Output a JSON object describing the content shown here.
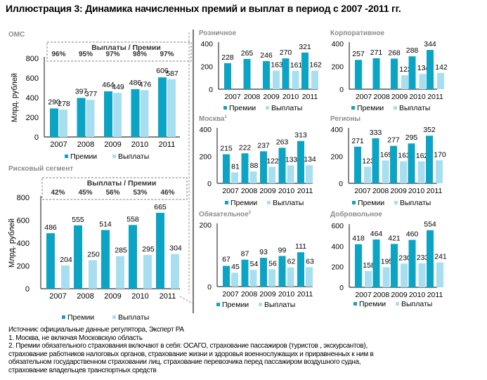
{
  "title": "Иллюстрация 3: Динамика начисленных премий и выплат в период с 2007 -2011 гг.",
  "colors": {
    "premii": "#0ba4c4",
    "vyplaty": "#a8dff0",
    "panel_title": "#8c8c8c",
    "dash": "#9a9a9a"
  },
  "legend": {
    "premii": "Премии",
    "vyplaty": "Выплаты"
  },
  "ratio_header": "Выплаты / Премии",
  "ylabel": "Млрд. рублей",
  "chart_data": [
    {
      "id": "oms",
      "type": "bar",
      "title": "ОМС",
      "categories": [
        "2007",
        "2008",
        "2009",
        "2010",
        "2011"
      ],
      "series": [
        {
          "name": "Премии",
          "values": [
            290,
            397,
            464,
            486,
            606
          ]
        },
        {
          "name": "Выплаты",
          "values": [
            278,
            377,
            449,
            476,
            587
          ]
        }
      ],
      "ratios": [
        "96%",
        "95%",
        "97%",
        "98%",
        "97%"
      ],
      "ylabel": "Млрд. рублей",
      "ylim": [
        0,
        800
      ],
      "yticks": [
        0,
        200,
        400,
        600,
        800
      ],
      "legend": "bottom",
      "grid": false
    },
    {
      "id": "risk",
      "type": "bar",
      "title": "Рисковый сегмент",
      "categories": [
        "2007",
        "2008",
        "2009",
        "2010",
        "2011"
      ],
      "series": [
        {
          "name": "Премии",
          "values": [
            486,
            555,
            514,
            558,
            665
          ]
        },
        {
          "name": "Выплаты",
          "values": [
            204,
            250,
            285,
            295,
            304
          ]
        }
      ],
      "ratios": [
        "42%",
        "45%",
        "56%",
        "53%",
        "46%"
      ],
      "ylabel": "Млрд. рублей",
      "ylim": [
        0,
        800
      ],
      "yticks": [
        0,
        200,
        400,
        600,
        800
      ],
      "legend": "bottom",
      "grid": false
    },
    {
      "id": "retail",
      "type": "bar",
      "title": "Розничное",
      "categories": [
        "2007",
        "2008",
        "2009",
        "2010",
        "2011"
      ],
      "series": [
        {
          "name": "Премии",
          "values": [
            228,
            265,
            246,
            270,
            321
          ]
        },
        {
          "name": "Выплаты",
          "values": [
            null,
            null,
            163,
            161,
            162
          ]
        }
      ],
      "ylim": [
        0,
        400
      ],
      "yticks": [
        0,
        200,
        400
      ],
      "legend": "bottom",
      "grid": false
    },
    {
      "id": "corporate",
      "type": "bar",
      "title": "Корпоративное",
      "categories": [
        "2007",
        "2008",
        "2009",
        "2010",
        "2011"
      ],
      "series": [
        {
          "name": "Премии",
          "values": [
            257,
            271,
            268,
            288,
            344
          ]
        },
        {
          "name": "Выплаты",
          "values": [
            null,
            null,
            122,
            134,
            142
          ]
        }
      ],
      "ylim": [
        0,
        400
      ],
      "yticks": [
        0,
        200,
        400
      ],
      "legend": "bottom",
      "grid": false
    },
    {
      "id": "moscow",
      "type": "bar",
      "title": "Москва",
      "title_sup": "1",
      "categories": [
        "2007",
        "2008",
        "2009",
        "2010",
        "2011"
      ],
      "series": [
        {
          "name": "Премии",
          "values": [
            215,
            222,
            237,
            263,
            313
          ]
        },
        {
          "name": "Выплаты",
          "values": [
            81,
            88,
            122,
            133,
            134
          ]
        }
      ],
      "ylim": [
        0,
        400
      ],
      "yticks": [
        0,
        200,
        400
      ],
      "legend": "bottom",
      "grid": false
    },
    {
      "id": "regions",
      "type": "bar",
      "title": "Регионы",
      "categories": [
        "2007",
        "2008",
        "2009",
        "2010",
        "2011"
      ],
      "series": [
        {
          "name": "Премии",
          "values": [
            271,
            333,
            277,
            295,
            352
          ]
        },
        {
          "name": "Выплаты",
          "values": [
            123,
            169,
            163,
            162,
            170
          ]
        }
      ],
      "ylim": [
        0,
        400
      ],
      "yticks": [
        0,
        200,
        400
      ],
      "legend": "bottom",
      "grid": false
    },
    {
      "id": "mandatory",
      "type": "bar",
      "title": "Обязательное",
      "title_sup": "2",
      "categories": [
        "2007",
        "2008",
        "2009",
        "2010",
        "2011"
      ],
      "series": [
        {
          "name": "Премии",
          "values": [
            67,
            87,
            93,
            99,
            111
          ]
        },
        {
          "name": "Выплаты",
          "values": [
            45,
            54,
            56,
            62,
            63
          ]
        }
      ],
      "ylim": [
        0,
        200
      ],
      "yticks": [
        0,
        200
      ],
      "legend": "bottom",
      "grid": false
    },
    {
      "id": "voluntary",
      "type": "bar",
      "title": "Добровольное",
      "categories": [
        "2007",
        "2008",
        "2009",
        "2010",
        "2011"
      ],
      "series": [
        {
          "name": "Премии",
          "values": [
            418,
            464,
            421,
            460,
            554
          ]
        },
        {
          "name": "Выплаты",
          "values": [
            158,
            195,
            230,
            233,
            241
          ]
        }
      ],
      "ylim": [
        0,
        600
      ],
      "yticks": [
        0,
        200,
        400,
        600
      ],
      "legend": "bottom",
      "grid": false
    }
  ],
  "footnotes": [
    "Источник: официальные данные регулятора, Эксперт РА",
    "1. Москва, не включая Московскую область",
    "2. Премии обязательного страхования включают в себя: ОСАГО, страхование пассажиров (туристов , экскурсантов),",
    "страхование работников налоговых органов, страхование жизни и здоровья военнослужащих и приравненных к ним в",
    "обязательном государственном страховании лиц, страхование перевозчика перед пассажиром воздушного судна,",
    "страхование владельцев транспортных средств"
  ]
}
